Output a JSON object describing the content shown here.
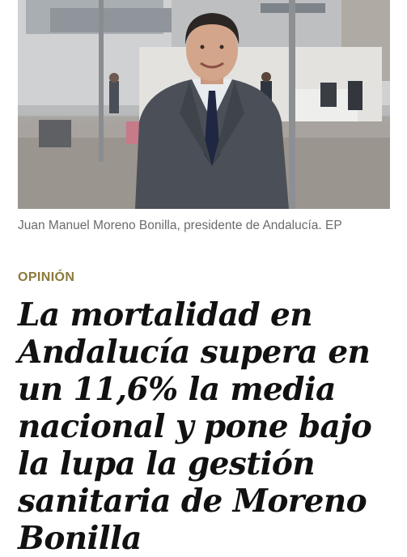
{
  "article": {
    "image": {
      "alt_icon": "portrait-photo"
    },
    "caption": "Juan Manuel Moreno Bonilla, presidente de Andalucía. EP",
    "section": "OPINIÓN",
    "headline": "La mortalidad en Andalucía supera en un 11,6% la media nacional y pone bajo la lupa la gestión sanitaria de Moreno Bonilla"
  },
  "colors": {
    "section": "#8a7a3a",
    "headline": "#111111",
    "caption": "#6b6b6b"
  }
}
